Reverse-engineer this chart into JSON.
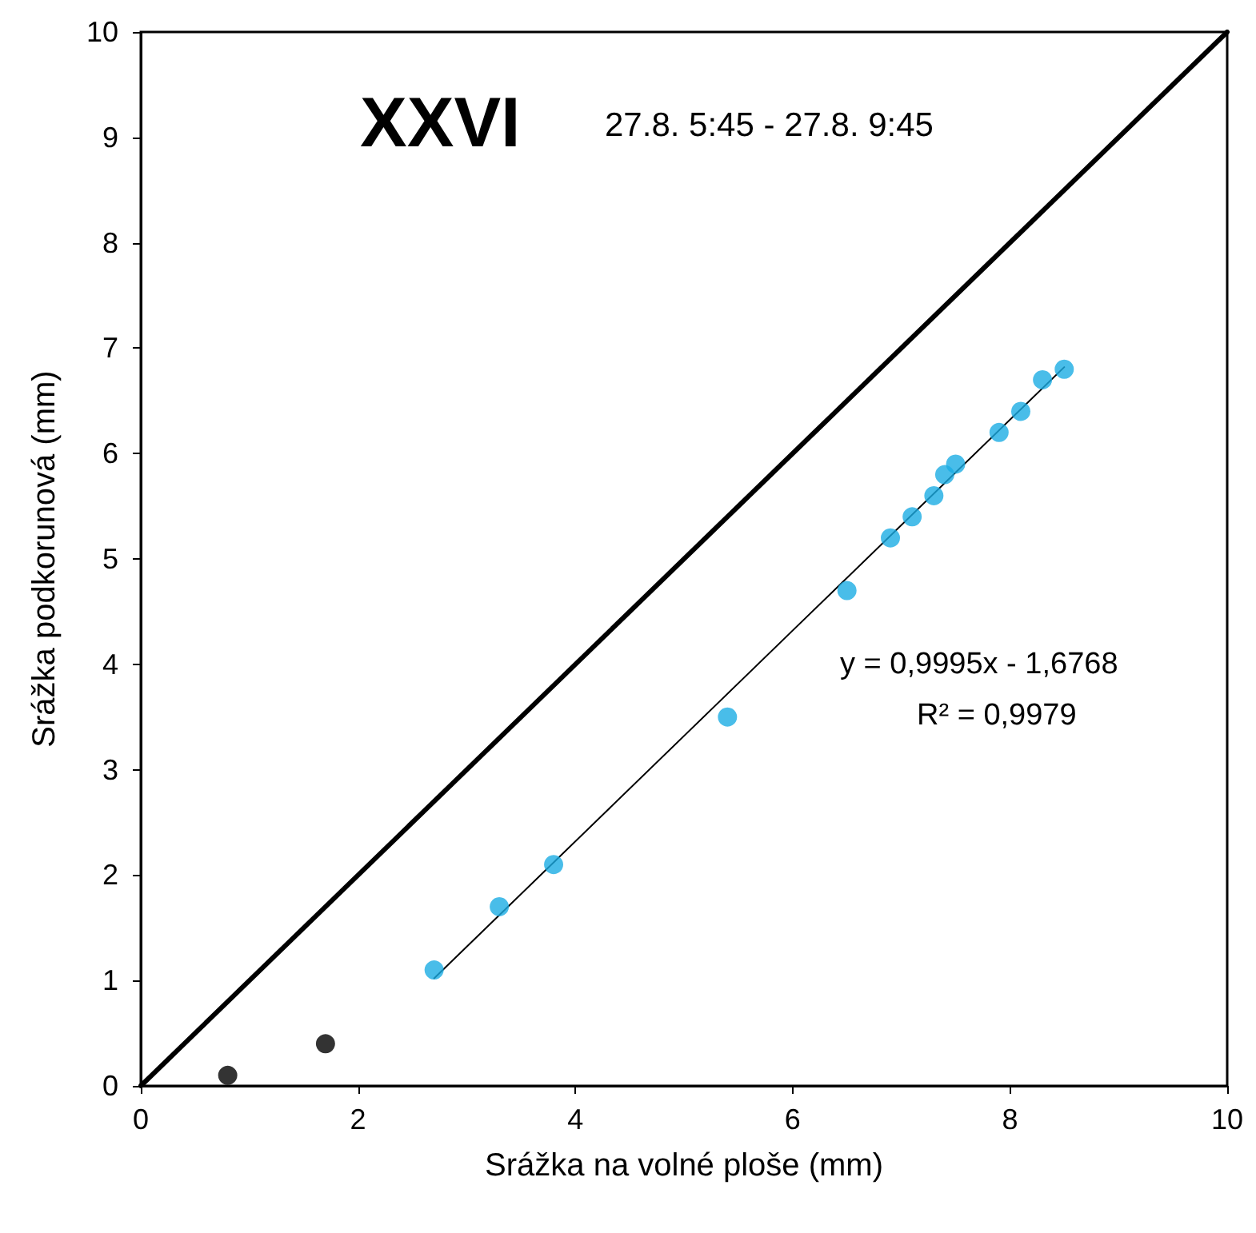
{
  "chart_data": {
    "type": "scatter",
    "title": "XXVI",
    "xlabel": "Srážka na volné ploše (mm)",
    "ylabel": "Srážka podkorunová (mm)",
    "annotations": [
      "27.8. 5:45 - 27.8. 9:45",
      "y = 0,9995x - 1,6768",
      "R² = 0,9979"
    ],
    "xlim": [
      0,
      10
    ],
    "xticks": [
      0,
      2,
      4,
      6,
      8,
      10
    ],
    "ylim": [
      0,
      10
    ],
    "yticks": [
      0,
      1,
      2,
      3,
      4,
      5,
      6,
      7,
      8,
      9,
      10
    ],
    "grid": false,
    "marker": "circle",
    "series": [
      {
        "type": "line",
        "color": "#000000",
        "line_style": "solid",
        "marker": "none",
        "x": [
          0,
          10
        ],
        "values": [
          0,
          10
        ]
      },
      {
        "type": "line",
        "color": "#000000",
        "line_style": "solid",
        "marker": "none",
        "x": [
          2.7,
          8.5
        ],
        "values": [
          1.02,
          6.82
        ]
      },
      {
        "color": "#1cade4",
        "x": [
          2.7,
          3.3,
          3.8,
          5.4,
          6.5,
          6.9,
          7.1,
          7.3,
          7.4,
          7.5,
          7.9,
          8.1,
          8.3,
          8.5
        ],
        "values": [
          1.1,
          1.7,
          2.1,
          3.5,
          4.7,
          5.2,
          5.4,
          5.6,
          5.8,
          5.9,
          6.2,
          6.4,
          6.7,
          6.8
        ]
      },
      {
        "color": "#000000",
        "x": [
          0.8,
          1.7
        ],
        "values": [
          0.1,
          0.4
        ]
      }
    ]
  }
}
